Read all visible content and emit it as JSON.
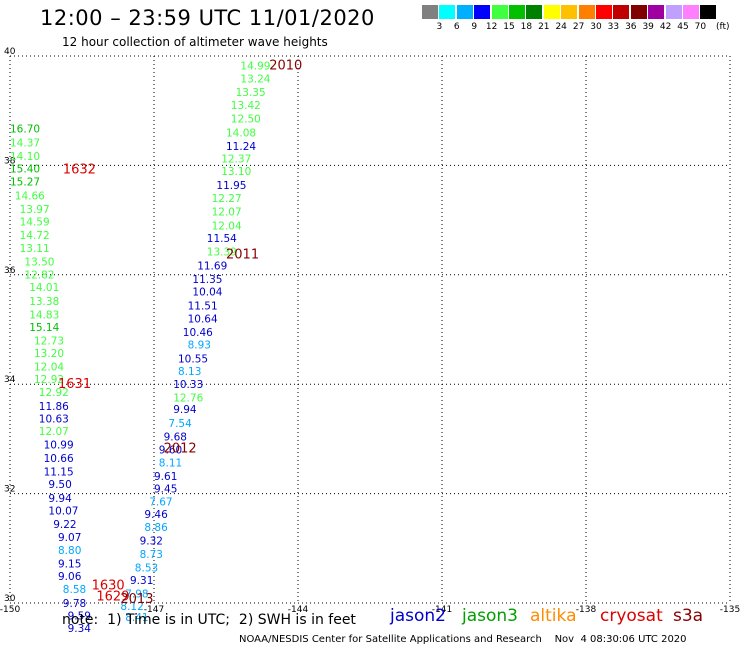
{
  "header": {
    "title": "12:00 – 23:59 UTC 11/01/2020",
    "subtitle": "12 hour collection of altimeter wave heights"
  },
  "scale": {
    "unit": "(ft)",
    "colors": [
      "#808080",
      "#00ffff",
      "#00b0ff",
      "#0000ff",
      "#40ff40",
      "#00c000",
      "#008000",
      "#ffff00",
      "#ffc000",
      "#ff8000",
      "#ff0000",
      "#c00000",
      "#800000",
      "#a000a0",
      "#c0a0ff",
      "#ff80ff",
      "#000000"
    ],
    "labels": [
      "3",
      "6",
      "9",
      "12",
      "15",
      "18",
      "21",
      "24",
      "27",
      "30",
      "33",
      "36",
      "39",
      "42",
      "45",
      "70"
    ]
  },
  "footer": {
    "note": "note:  1) Time is in UTC;  2) SWH is in feet",
    "satellites": [
      {
        "name": "jason2",
        "color": "#0000cc"
      },
      {
        "name": "jason3",
        "color": "#00a000"
      },
      {
        "name": "altika",
        "color": "#ff8c00"
      },
      {
        "name": "cryosat",
        "color": "#dd0000"
      },
      {
        "name": "s3a",
        "color": "#880000"
      }
    ],
    "credit": "NOAA/NESDIS Center for Satellite Applications and Research    Nov  4 08:30:06 UTC 2020"
  },
  "chart_data": {
    "type": "scatter",
    "title": "12 hour collection of altimeter wave heights",
    "xlim": [
      -150,
      -135
    ],
    "ylim": [
      30,
      40
    ],
    "x_ticks": [
      "-150",
      "-147",
      "-144",
      "-141",
      "-138",
      "-135"
    ],
    "y_ticks": [
      "30",
      "32",
      "34",
      "36",
      "38",
      "40"
    ],
    "grid": true,
    "tracks": [
      {
        "name": "1632",
        "color": "#dd0000",
        "x": -148.9,
        "y": 37.85
      },
      {
        "name": "1631",
        "color": "#dd0000",
        "x": -149.0,
        "y": 33.93
      },
      {
        "name": "1630",
        "color": "#dd0000",
        "x": -148.3,
        "y": 30.25
      },
      {
        "name": "1629",
        "color": "#dd0000",
        "x": -148.2,
        "y": 30.05
      },
      {
        "name": "2010",
        "color": "#880000",
        "x": -144.6,
        "y": 39.75
      },
      {
        "name": "2011",
        "color": "#880000",
        "x": -145.5,
        "y": 36.3
      },
      {
        "name": "2012",
        "color": "#880000",
        "x": -146.8,
        "y": 32.75
      },
      {
        "name": "2013",
        "color": "#880000",
        "x": -147.7,
        "y": 30.0
      }
    ],
    "observations": [
      {
        "v": "14.99",
        "x": -145.2,
        "y": 39.75,
        "c": "#40ff40"
      },
      {
        "v": "13.24",
        "x": -145.2,
        "y": 39.52,
        "c": "#40ff40"
      },
      {
        "v": "13.35",
        "x": -145.3,
        "y": 39.27,
        "c": "#40ff40"
      },
      {
        "v": "13.42",
        "x": -145.4,
        "y": 39.03,
        "c": "#40ff40"
      },
      {
        "v": "12.50",
        "x": -145.4,
        "y": 38.78,
        "c": "#40ff40"
      },
      {
        "v": "14.08",
        "x": -145.5,
        "y": 38.53,
        "c": "#40ff40"
      },
      {
        "v": "11.24",
        "x": -145.5,
        "y": 38.28,
        "c": "#0000cc"
      },
      {
        "v": "12.37",
        "x": -145.6,
        "y": 38.05,
        "c": "#40ff40"
      },
      {
        "v": "13.10",
        "x": -145.6,
        "y": 37.82,
        "c": "#40ff40"
      },
      {
        "v": "11.95",
        "x": -145.7,
        "y": 37.57,
        "c": "#0000cc"
      },
      {
        "v": "12.27",
        "x": -145.8,
        "y": 37.33,
        "c": "#40ff40"
      },
      {
        "v": "12.07",
        "x": -145.8,
        "y": 37.08,
        "c": "#40ff40"
      },
      {
        "v": "12.04",
        "x": -145.8,
        "y": 36.83,
        "c": "#40ff40"
      },
      {
        "v": "11.54",
        "x": -145.9,
        "y": 36.6,
        "c": "#0000cc"
      },
      {
        "v": "13.39",
        "x": -145.9,
        "y": 36.35,
        "c": "#40ff40"
      },
      {
        "v": "11.69",
        "x": -146.1,
        "y": 36.1,
        "c": "#0000cc"
      },
      {
        "v": "11.35",
        "x": -146.2,
        "y": 35.85,
        "c": "#0000cc"
      },
      {
        "v": "10.04",
        "x": -146.2,
        "y": 35.62,
        "c": "#0000cc"
      },
      {
        "v": "11.51",
        "x": -146.3,
        "y": 35.37,
        "c": "#0000cc"
      },
      {
        "v": "10.64",
        "x": -146.3,
        "y": 35.13,
        "c": "#0000cc"
      },
      {
        "v": "10.46",
        "x": -146.4,
        "y": 34.88,
        "c": "#0000cc"
      },
      {
        "v": "8.93",
        "x": -146.3,
        "y": 34.65,
        "c": "#00a8ff"
      },
      {
        "v": "10.55",
        "x": -146.5,
        "y": 34.4,
        "c": "#0000cc"
      },
      {
        "v": "8.13",
        "x": -146.5,
        "y": 34.17,
        "c": "#00a8ff"
      },
      {
        "v": "10.33",
        "x": -146.6,
        "y": 33.93,
        "c": "#0000cc"
      },
      {
        "v": "12.76",
        "x": -146.6,
        "y": 33.68,
        "c": "#40ff40"
      },
      {
        "v": "9.94",
        "x": -146.6,
        "y": 33.47,
        "c": "#0000cc"
      },
      {
        "v": "7.54",
        "x": -146.7,
        "y": 33.22,
        "c": "#00a8ff"
      },
      {
        "v": "9.68",
        "x": -146.8,
        "y": 32.97,
        "c": "#0000cc"
      },
      {
        "v": "9.60",
        "x": -146.9,
        "y": 32.73,
        "c": "#0000cc"
      },
      {
        "v": "8.11",
        "x": -146.9,
        "y": 32.5,
        "c": "#00a8ff"
      },
      {
        "v": "9.61",
        "x": -147.0,
        "y": 32.25,
        "c": "#0000cc"
      },
      {
        "v": "9.45",
        "x": -147.0,
        "y": 32.02,
        "c": "#0000cc"
      },
      {
        "v": "7.67",
        "x": -147.1,
        "y": 31.78,
        "c": "#00a8ff"
      },
      {
        "v": "9.46",
        "x": -147.2,
        "y": 31.55,
        "c": "#0000cc"
      },
      {
        "v": "8.86",
        "x": -147.2,
        "y": 31.32,
        "c": "#00a8ff"
      },
      {
        "v": "9.32",
        "x": -147.3,
        "y": 31.07,
        "c": "#0000cc"
      },
      {
        "v": "8.73",
        "x": -147.3,
        "y": 30.82,
        "c": "#00a8ff"
      },
      {
        "v": "8.53",
        "x": -147.4,
        "y": 30.58,
        "c": "#00a8ff"
      },
      {
        "v": "9.31",
        "x": -147.5,
        "y": 30.35,
        "c": "#0000cc"
      },
      {
        "v": "7.98",
        "x": -147.6,
        "y": 30.1,
        "c": "#00a8ff"
      },
      {
        "v": "8.12",
        "x": -147.7,
        "y": 29.87,
        "c": "#00a8ff"
      },
      {
        "v": "8.41",
        "x": -147.6,
        "y": 29.67,
        "c": "#00a8ff"
      },
      {
        "v": "16.70",
        "x": -150.0,
        "y": 38.6,
        "c": "#00c000"
      },
      {
        "v": "14.37",
        "x": -150.0,
        "y": 38.35,
        "c": "#40ff40"
      },
      {
        "v": "14.10",
        "x": -150.0,
        "y": 38.1,
        "c": "#40ff40"
      },
      {
        "v": "15.40",
        "x": -150.0,
        "y": 37.87,
        "c": "#00c000"
      },
      {
        "v": "15.27",
        "x": -150.0,
        "y": 37.63,
        "c": "#00c000"
      },
      {
        "v": "14.66",
        "x": -149.9,
        "y": 37.38,
        "c": "#40ff40"
      },
      {
        "v": "13.97",
        "x": -149.8,
        "y": 37.13,
        "c": "#40ff40"
      },
      {
        "v": "14.59",
        "x": -149.8,
        "y": 36.9,
        "c": "#40ff40"
      },
      {
        "v": "14.72",
        "x": -149.8,
        "y": 36.65,
        "c": "#40ff40"
      },
      {
        "v": "13.11",
        "x": -149.8,
        "y": 36.42,
        "c": "#40ff40"
      },
      {
        "v": "13.50",
        "x": -149.7,
        "y": 36.17,
        "c": "#40ff40"
      },
      {
        "v": "12.82",
        "x": -149.7,
        "y": 35.93,
        "c": "#40ff40"
      },
      {
        "v": "14.01",
        "x": -149.6,
        "y": 35.7,
        "c": "#40ff40"
      },
      {
        "v": "13.38",
        "x": -149.6,
        "y": 35.45,
        "c": "#40ff40"
      },
      {
        "v": "14.83",
        "x": -149.6,
        "y": 35.2,
        "c": "#40ff40"
      },
      {
        "v": "15.14",
        "x": -149.6,
        "y": 34.97,
        "c": "#00c000"
      },
      {
        "v": "12.73",
        "x": -149.5,
        "y": 34.73,
        "c": "#40ff40"
      },
      {
        "v": "13.20",
        "x": -149.5,
        "y": 34.5,
        "c": "#40ff40"
      },
      {
        "v": "12.04",
        "x": -149.5,
        "y": 34.25,
        "c": "#40ff40"
      },
      {
        "v": "12.92",
        "x": -149.5,
        "y": 34.02,
        "c": "#40ff40"
      },
      {
        "v": "12.92",
        "x": -149.4,
        "y": 33.78,
        "c": "#40ff40"
      },
      {
        "v": "11.86",
        "x": -149.4,
        "y": 33.53,
        "c": "#0000cc"
      },
      {
        "v": "10.63",
        "x": -149.4,
        "y": 33.3,
        "c": "#0000cc"
      },
      {
        "v": "12.07",
        "x": -149.4,
        "y": 33.07,
        "c": "#40ff40"
      },
      {
        "v": "10.99",
        "x": -149.3,
        "y": 32.82,
        "c": "#0000cc"
      },
      {
        "v": "10.66",
        "x": -149.3,
        "y": 32.58,
        "c": "#0000cc"
      },
      {
        "v": "11.15",
        "x": -149.3,
        "y": 32.33,
        "c": "#0000cc"
      },
      {
        "v": "9.50",
        "x": -149.2,
        "y": 32.1,
        "c": "#0000cc"
      },
      {
        "v": "9.94",
        "x": -149.2,
        "y": 31.85,
        "c": "#0000cc"
      },
      {
        "v": "10.07",
        "x": -149.2,
        "y": 31.62,
        "c": "#0000cc"
      },
      {
        "v": "9.22",
        "x": -149.1,
        "y": 31.37,
        "c": "#0000cc"
      },
      {
        "v": "9.07",
        "x": -149.0,
        "y": 31.13,
        "c": "#0000cc"
      },
      {
        "v": "8.80",
        "x": -149.0,
        "y": 30.9,
        "c": "#00a8ff"
      },
      {
        "v": "9.15",
        "x": -149.0,
        "y": 30.65,
        "c": "#0000cc"
      },
      {
        "v": "9.06",
        "x": -149.0,
        "y": 30.42,
        "c": "#0000cc"
      },
      {
        "v": "8.58",
        "x": -148.9,
        "y": 30.18,
        "c": "#00a8ff"
      },
      {
        "v": "9.78",
        "x": -148.9,
        "y": 29.93,
        "c": "#0000cc"
      },
      {
        "v": "9.59",
        "x": -148.8,
        "y": 29.7,
        "c": "#0000cc"
      },
      {
        "v": "9.34",
        "x": -148.8,
        "y": 29.47,
        "c": "#0000cc"
      }
    ]
  }
}
